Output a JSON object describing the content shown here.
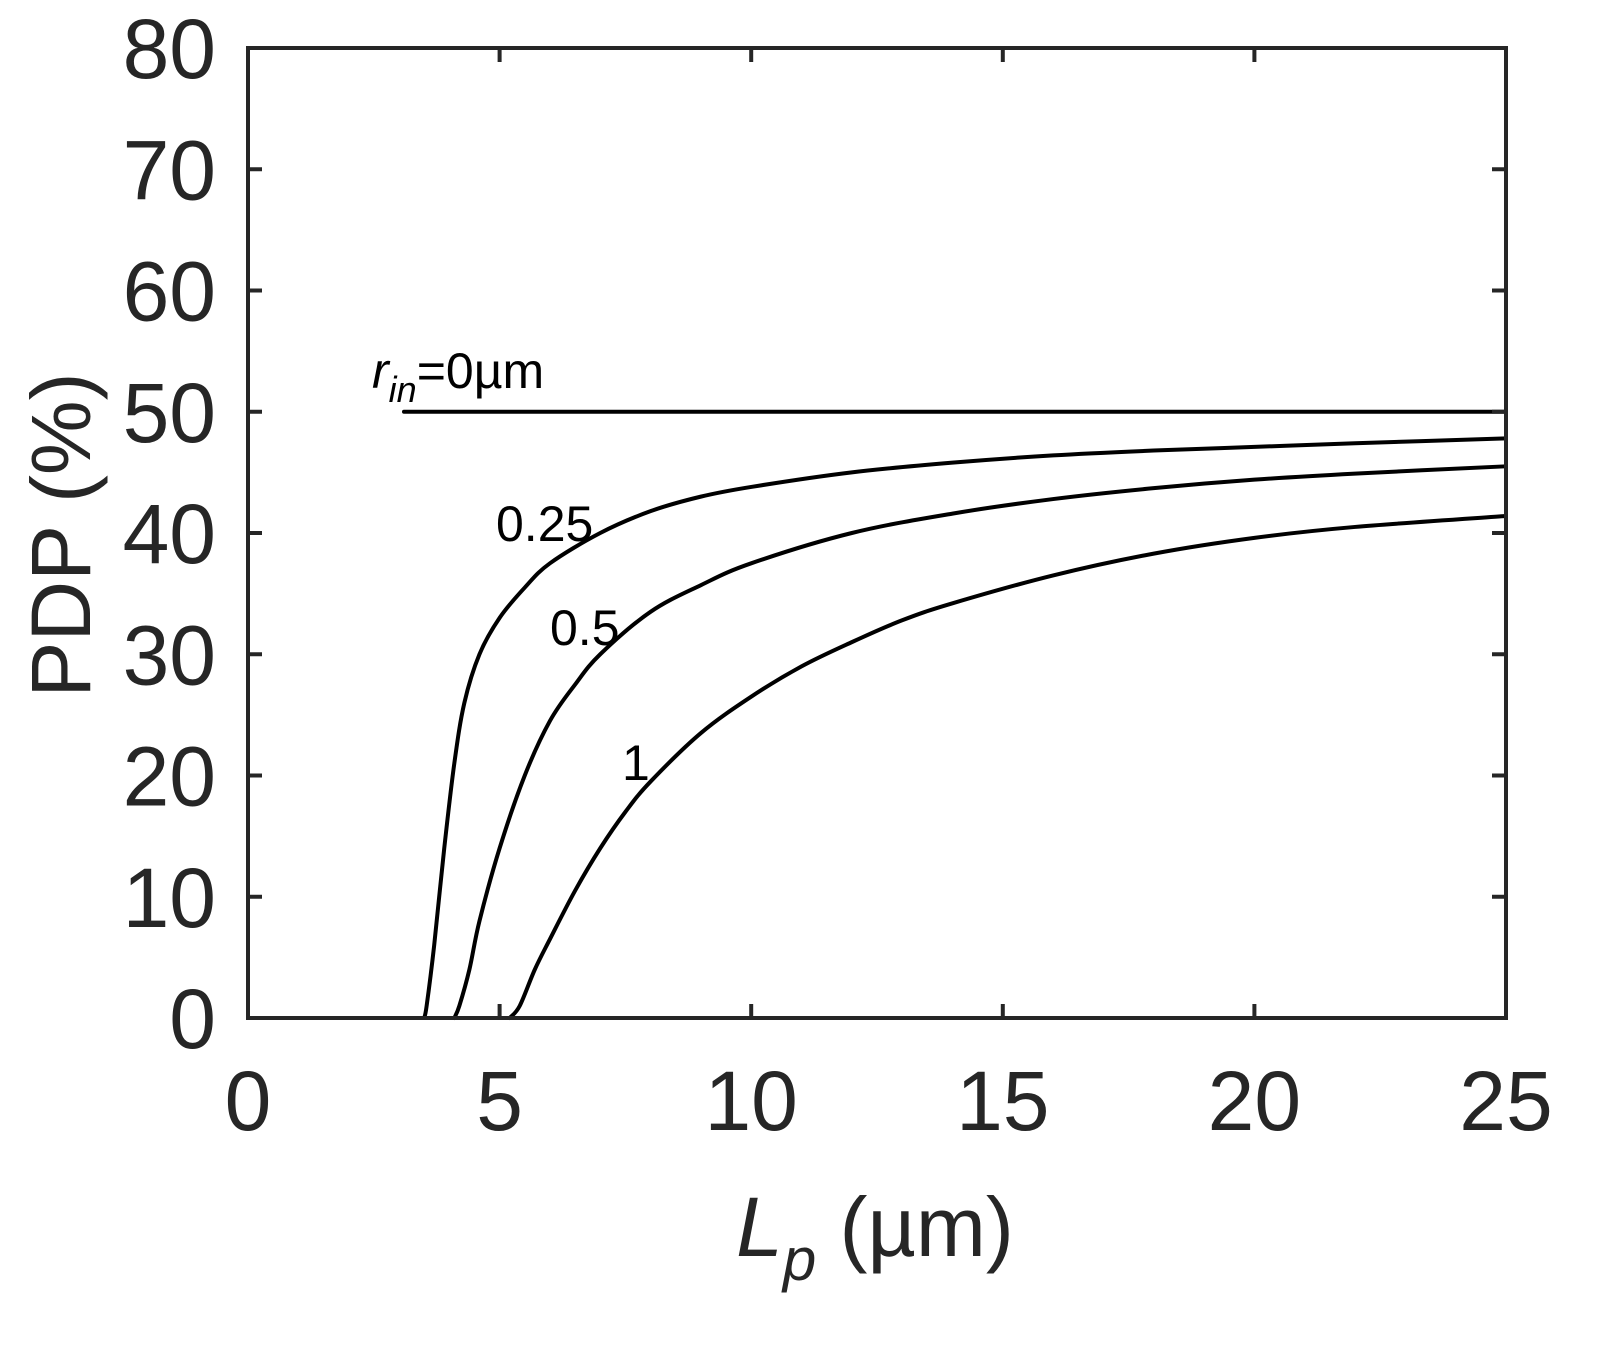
{
  "chart_data": {
    "type": "line",
    "title": "",
    "xlabel": "L_p (µm)",
    "xlabel_main": "L",
    "xlabel_sub": "p",
    "xlabel_unit": " (µm)",
    "ylabel": "PDP (%)",
    "xlim": [
      0,
      25
    ],
    "ylim": [
      0,
      80
    ],
    "xticks": [
      0,
      5,
      10,
      15,
      20,
      25
    ],
    "yticks": [
      0,
      10,
      20,
      30,
      40,
      50,
      60,
      70,
      80
    ],
    "grid": false,
    "legend": "none",
    "line_color": "#000000",
    "series": [
      {
        "name": "r_in=0µm",
        "label_main": "r",
        "label_sub": "in",
        "label_rest": "=0µm",
        "x": [
          3.1,
          25
        ],
        "y": [
          50,
          50
        ]
      },
      {
        "name": "0.25",
        "label": "0.25",
        "x": [
          3.5,
          3.55,
          3.7,
          3.9,
          4.1,
          4.3,
          4.6,
          5.0,
          5.5,
          6.0,
          7.0,
          8.0,
          9.0,
          10.0,
          12.0,
          14.0,
          16.0,
          18.0,
          20.0,
          22.0,
          25.0
        ],
        "y": [
          0,
          1,
          6,
          14,
          21,
          26,
          30,
          33,
          35.5,
          37.5,
          40,
          41.8,
          43,
          43.8,
          45,
          45.8,
          46.4,
          46.8,
          47.1,
          47.4,
          47.8
        ]
      },
      {
        "name": "0.5",
        "label": "0.5",
        "x": [
          4.1,
          4.2,
          4.4,
          4.6,
          5.0,
          5.5,
          6.0,
          6.5,
          7.0,
          8.0,
          9.0,
          10.0,
          12.0,
          14.0,
          16.0,
          18.0,
          20.0,
          22.0,
          25.0
        ],
        "y": [
          0,
          1,
          4,
          8,
          14,
          20,
          24.5,
          27.5,
          30,
          33.5,
          35.7,
          37.5,
          40,
          41.6,
          42.8,
          43.7,
          44.4,
          44.9,
          45.5
        ]
      },
      {
        "name": "1",
        "label": "1",
        "x": [
          5.2,
          5.4,
          5.7,
          6.0,
          6.5,
          7.0,
          7.5,
          8.0,
          9.0,
          10.0,
          11.0,
          12.0,
          13.0,
          14.0,
          16.0,
          18.0,
          20.0,
          22.0,
          25.0
        ],
        "y": [
          0,
          1,
          4,
          6.5,
          10.5,
          14,
          17,
          19.5,
          23.5,
          26.5,
          29,
          31,
          32.8,
          34.2,
          36.5,
          38.3,
          39.6,
          40.5,
          41.4
        ]
      }
    ]
  }
}
